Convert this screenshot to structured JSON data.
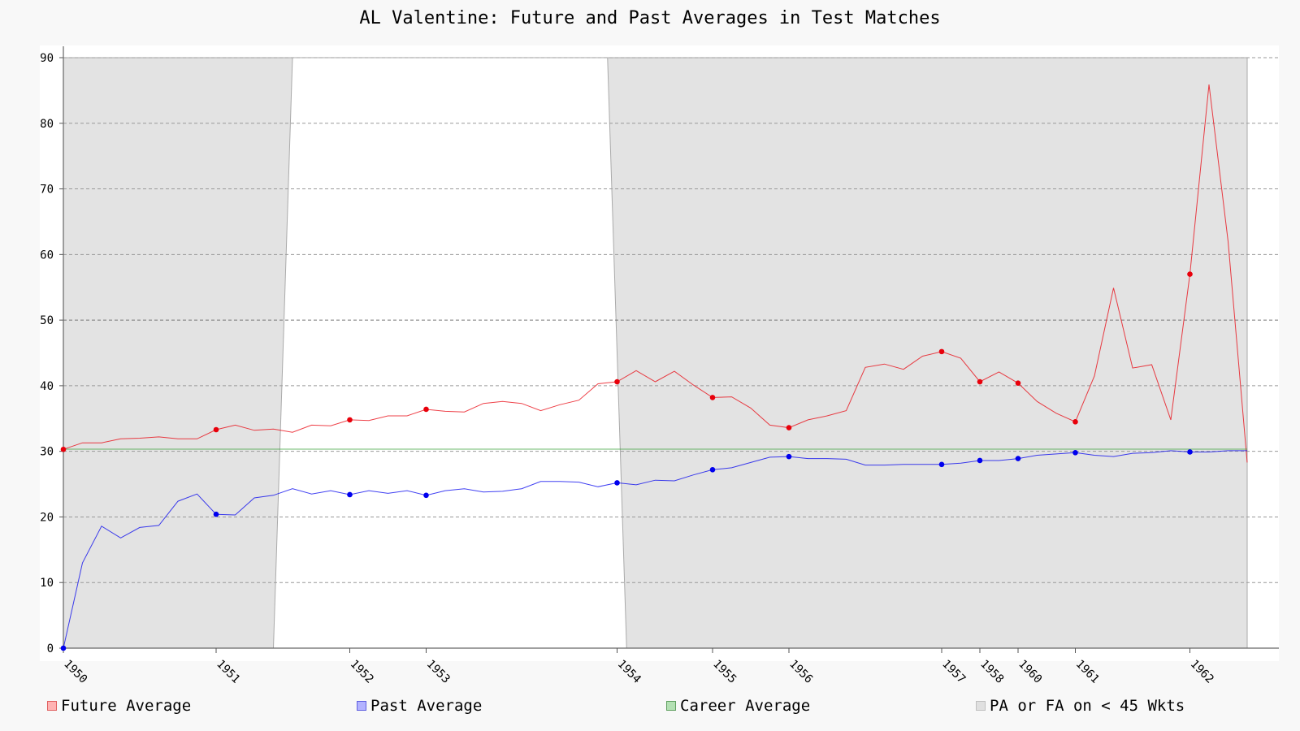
{
  "chart_data": {
    "type": "line",
    "title": "AL Valentine: Future and Past Averages in Test Matches",
    "xlabel": "",
    "ylabel": "",
    "ylim": [
      0,
      90
    ],
    "y_ticks": [
      0,
      10,
      20,
      30,
      40,
      50,
      60,
      70,
      80,
      90
    ],
    "x_tick_labels": [
      "1950",
      "1951",
      "1952",
      "1953",
      "1954",
      "1955",
      "1956",
      "1957",
      "1958",
      "1960",
      "1961",
      "1962"
    ],
    "x_tick_index": [
      0,
      8,
      15,
      19,
      29,
      34,
      38,
      46,
      48,
      50,
      53,
      59
    ],
    "grid": "horizontal dashed",
    "legend_position": "bottom",
    "career_average": 30.33,
    "shaded_region": {
      "name": "PA or FA on < 45 Wkts",
      "index_start": 0,
      "index_end": 62,
      "unshaded_top_index": [
        12,
        28.5
      ],
      "unshaded_bottom_index": [
        11,
        29.5
      ]
    },
    "series": [
      {
        "name": "Future Average",
        "color": "#e8000b",
        "values": [
          30.3,
          31.3,
          31.3,
          31.9,
          32.0,
          32.2,
          31.9,
          31.9,
          33.3,
          34.0,
          33.2,
          33.4,
          32.9,
          34.0,
          33.9,
          34.8,
          34.7,
          35.4,
          35.4,
          36.4,
          36.1,
          36.0,
          37.3,
          37.6,
          37.3,
          36.2,
          37.1,
          37.8,
          40.3,
          40.6,
          42.3,
          40.6,
          42.2,
          40.1,
          38.2,
          38.3,
          36.6,
          34.0,
          33.6,
          34.8,
          35.4,
          36.2,
          42.8,
          43.3,
          42.5,
          44.5,
          45.2,
          44.2,
          40.6,
          42.1,
          40.4,
          37.6,
          35.8,
          34.5,
          41.5,
          54.9,
          42.7,
          43.2,
          34.8,
          57.0,
          85.9,
          62.0,
          28.3
        ],
        "markers": [
          0,
          8,
          15,
          19,
          29,
          34,
          38,
          46,
          48,
          50,
          53,
          59
        ]
      },
      {
        "name": "Past Average",
        "color": "#0000ee",
        "values": [
          0,
          13.0,
          18.6,
          16.8,
          18.4,
          18.7,
          22.4,
          23.5,
          20.4,
          20.3,
          22.9,
          23.3,
          24.3,
          23.5,
          24.0,
          23.4,
          24.0,
          23.6,
          24.0,
          23.3,
          24.0,
          24.3,
          23.8,
          23.9,
          24.3,
          25.4,
          25.4,
          25.3,
          24.6,
          25.2,
          24.9,
          25.6,
          25.5,
          26.4,
          27.2,
          27.5,
          28.3,
          29.1,
          29.2,
          28.9,
          28.9,
          28.8,
          27.9,
          27.9,
          28.0,
          28.0,
          28.0,
          28.2,
          28.6,
          28.6,
          28.9,
          29.4,
          29.6,
          29.8,
          29.4,
          29.2,
          29.7,
          29.8,
          30.1,
          29.9,
          29.9,
          30.1,
          30.1
        ],
        "markers": [
          0,
          8,
          15,
          19,
          29,
          34,
          38,
          46,
          48,
          50,
          53,
          59
        ]
      },
      {
        "name": "Career Average",
        "color": "#3aa03a",
        "values": [
          30.33,
          30.33
        ]
      }
    ],
    "legend": [
      {
        "label": "Future Average",
        "fill": "#ffb3b3",
        "stroke": "#e06060"
      },
      {
        "label": "Past Average",
        "fill": "#b3b3ff",
        "stroke": "#6060e0"
      },
      {
        "label": "Career Average",
        "fill": "#b3e0b3",
        "stroke": "#60a060"
      },
      {
        "label": "PA or FA on < 45 Wkts",
        "fill": "#e0e0e0",
        "stroke": "#c0c0c0"
      }
    ]
  }
}
